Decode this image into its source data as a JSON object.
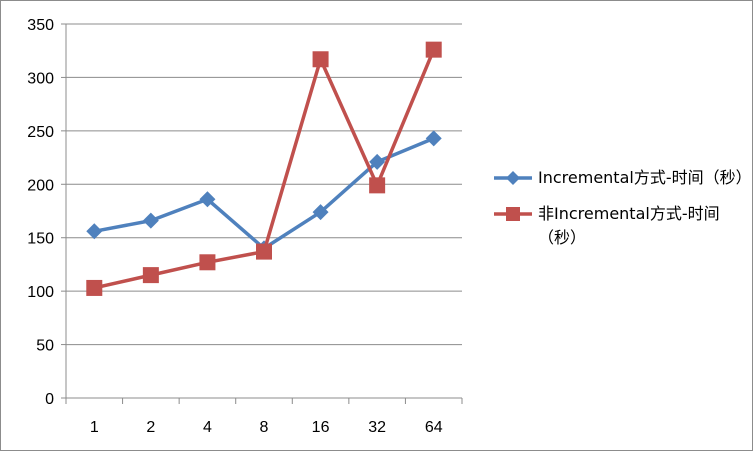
{
  "chart_data": {
    "type": "line",
    "categories": [
      "1",
      "2",
      "4",
      "8",
      "16",
      "32",
      "64"
    ],
    "ylim": [
      0,
      350
    ],
    "yticks": [
      0,
      50,
      100,
      150,
      200,
      250,
      300,
      350
    ],
    "grid": "horizontal",
    "legend_position": "right",
    "series": [
      {
        "name": "Incremental方式-时间（秒）",
        "color": "#4F81BD",
        "marker": "diamond",
        "values": [
          156,
          166,
          186,
          140,
          174,
          221,
          243
        ]
      },
      {
        "name": "非Incremental方式-时间（秒）",
        "color": "#C0504D",
        "marker": "square",
        "values": [
          103,
          115,
          127,
          137,
          317,
          199,
          326
        ]
      }
    ]
  }
}
